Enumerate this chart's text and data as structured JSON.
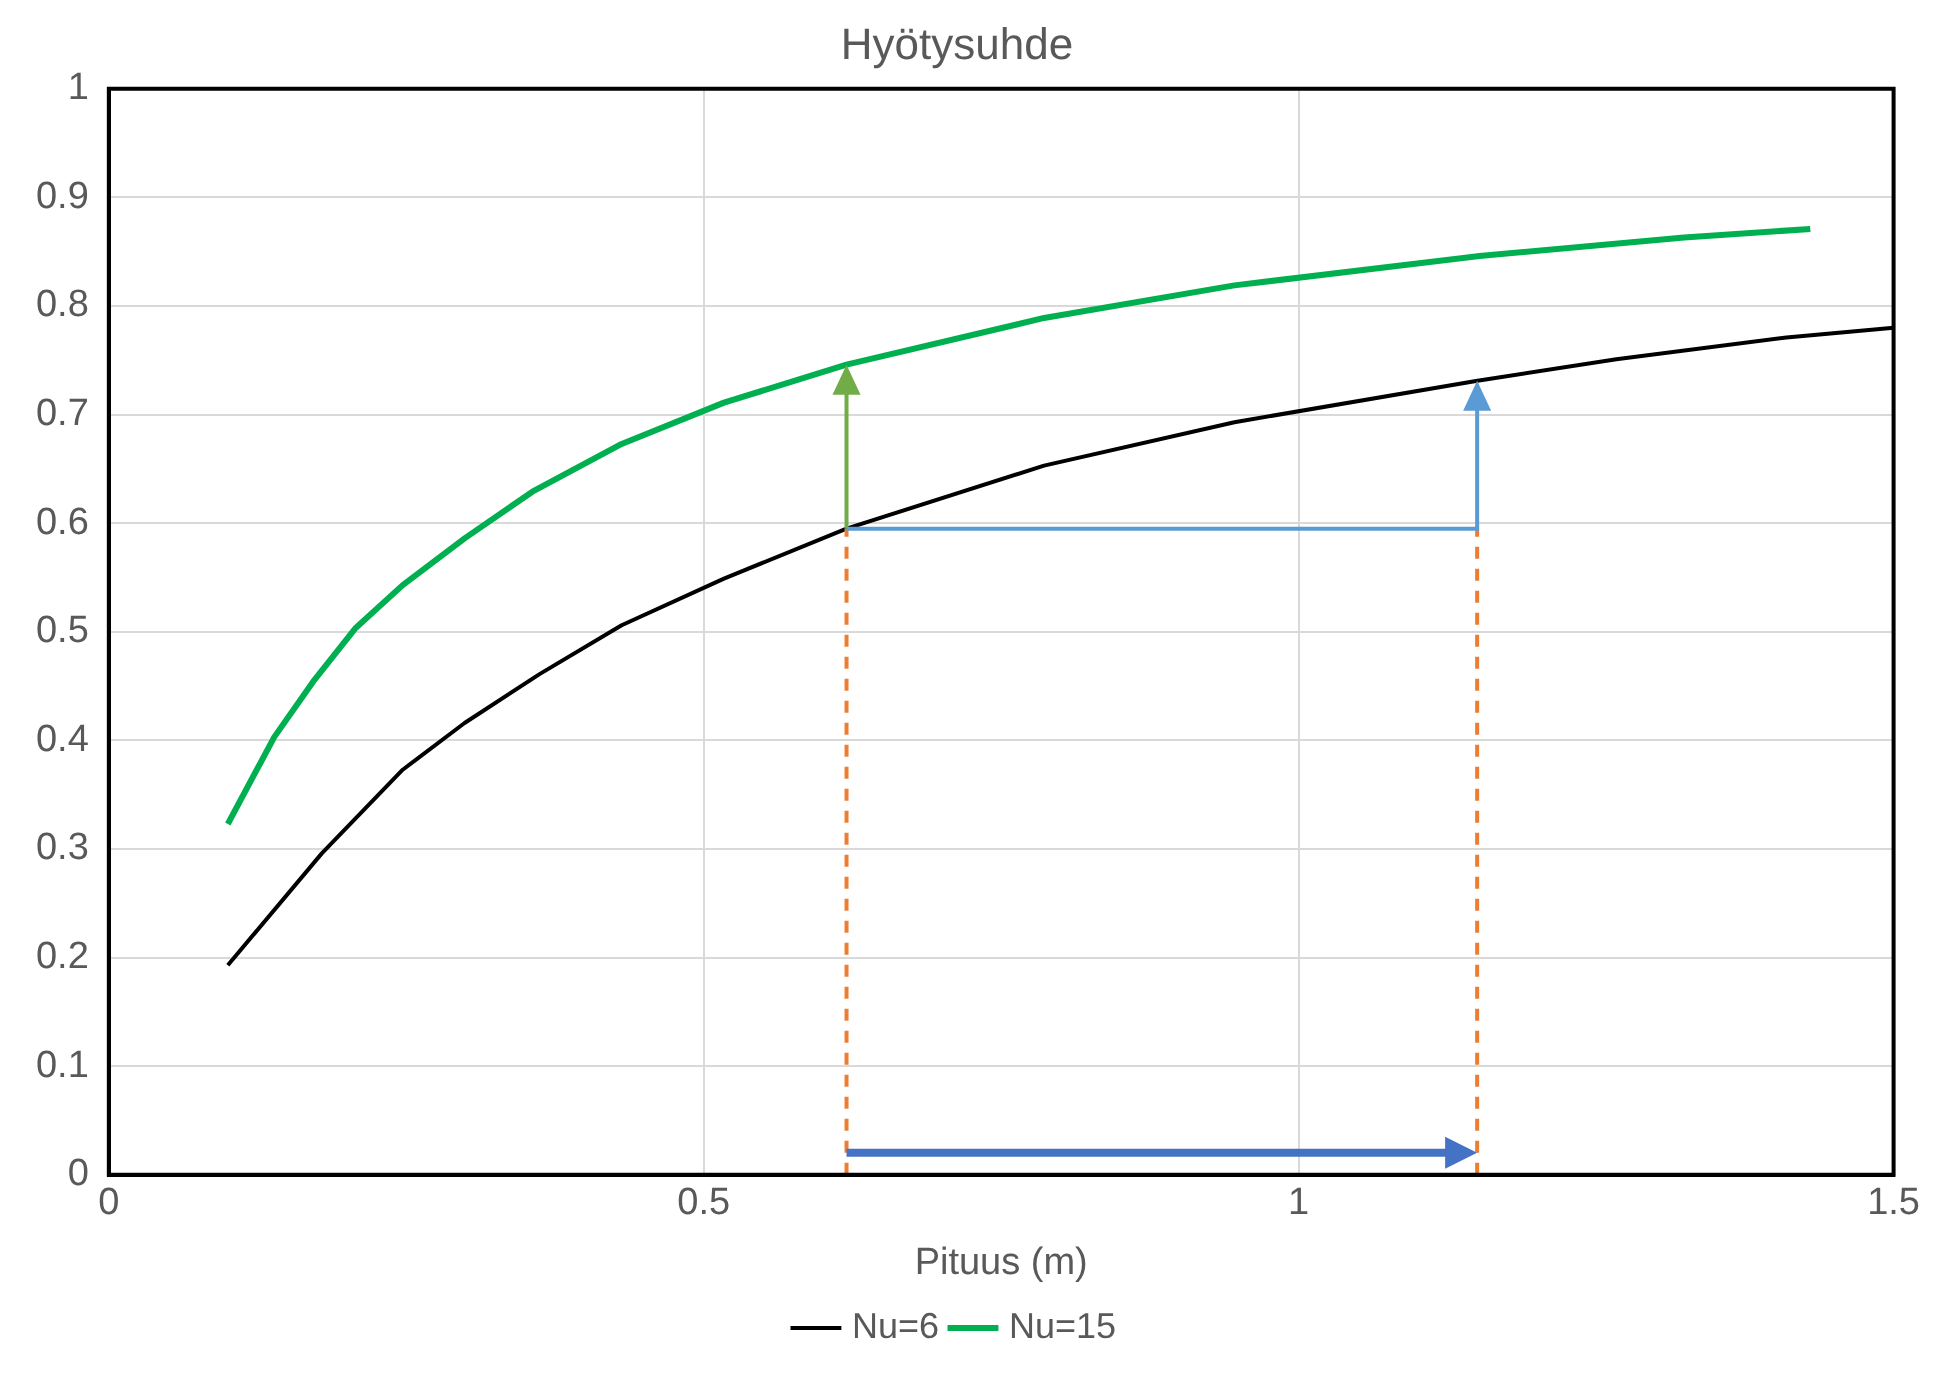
{
  "chart_data": {
    "type": "line",
    "title": "Hyötysuhde",
    "xlabel": "Pituus (m)",
    "xlim": [
      0,
      1.5
    ],
    "xticks": [
      0,
      0.5,
      1,
      1.5
    ],
    "ylim": [
      0,
      1
    ],
    "yticks": [
      0,
      0.1,
      0.2,
      0.3,
      0.4,
      0.5,
      0.6,
      0.7,
      0.8,
      0.9,
      1
    ],
    "grid": true,
    "legend": "bottom",
    "marker": "none",
    "line_style": "solid",
    "series": [
      {
        "name": "Nu=6",
        "color": "#000000",
        "x": [
          0.1,
          0.179,
          0.247,
          0.299,
          0.362,
          0.431,
          0.517,
          0.62,
          0.786,
          0.946,
          1.149,
          1.267,
          1.41,
          1.5
        ],
        "values": [
          0.193,
          0.296,
          0.373,
          0.416,
          0.461,
          0.506,
          0.549,
          0.595,
          0.653,
          0.693,
          0.731,
          0.751,
          0.771,
          0.78
        ]
      },
      {
        "name": "Nu=15",
        "color": "#00b050",
        "x": [
          0.1,
          0.139,
          0.173,
          0.207,
          0.247,
          0.299,
          0.356,
          0.431,
          0.517,
          0.62,
          0.763,
          0.786,
          0.946,
          1.152,
          1.324,
          1.43
        ],
        "values": [
          0.323,
          0.403,
          0.456,
          0.503,
          0.543,
          0.586,
          0.629,
          0.673,
          0.711,
          0.746,
          0.783,
          0.789,
          0.819,
          0.846,
          0.863,
          0.871
        ]
      }
    ],
    "ref_lines": [
      {
        "axis": "x",
        "value": 0.62,
        "color": "#ed7d31",
        "line_style": "dashed"
      },
      {
        "axis": "x",
        "value": 1.15,
        "color": "#ed7d31",
        "line_style": "dashed"
      }
    ]
  }
}
